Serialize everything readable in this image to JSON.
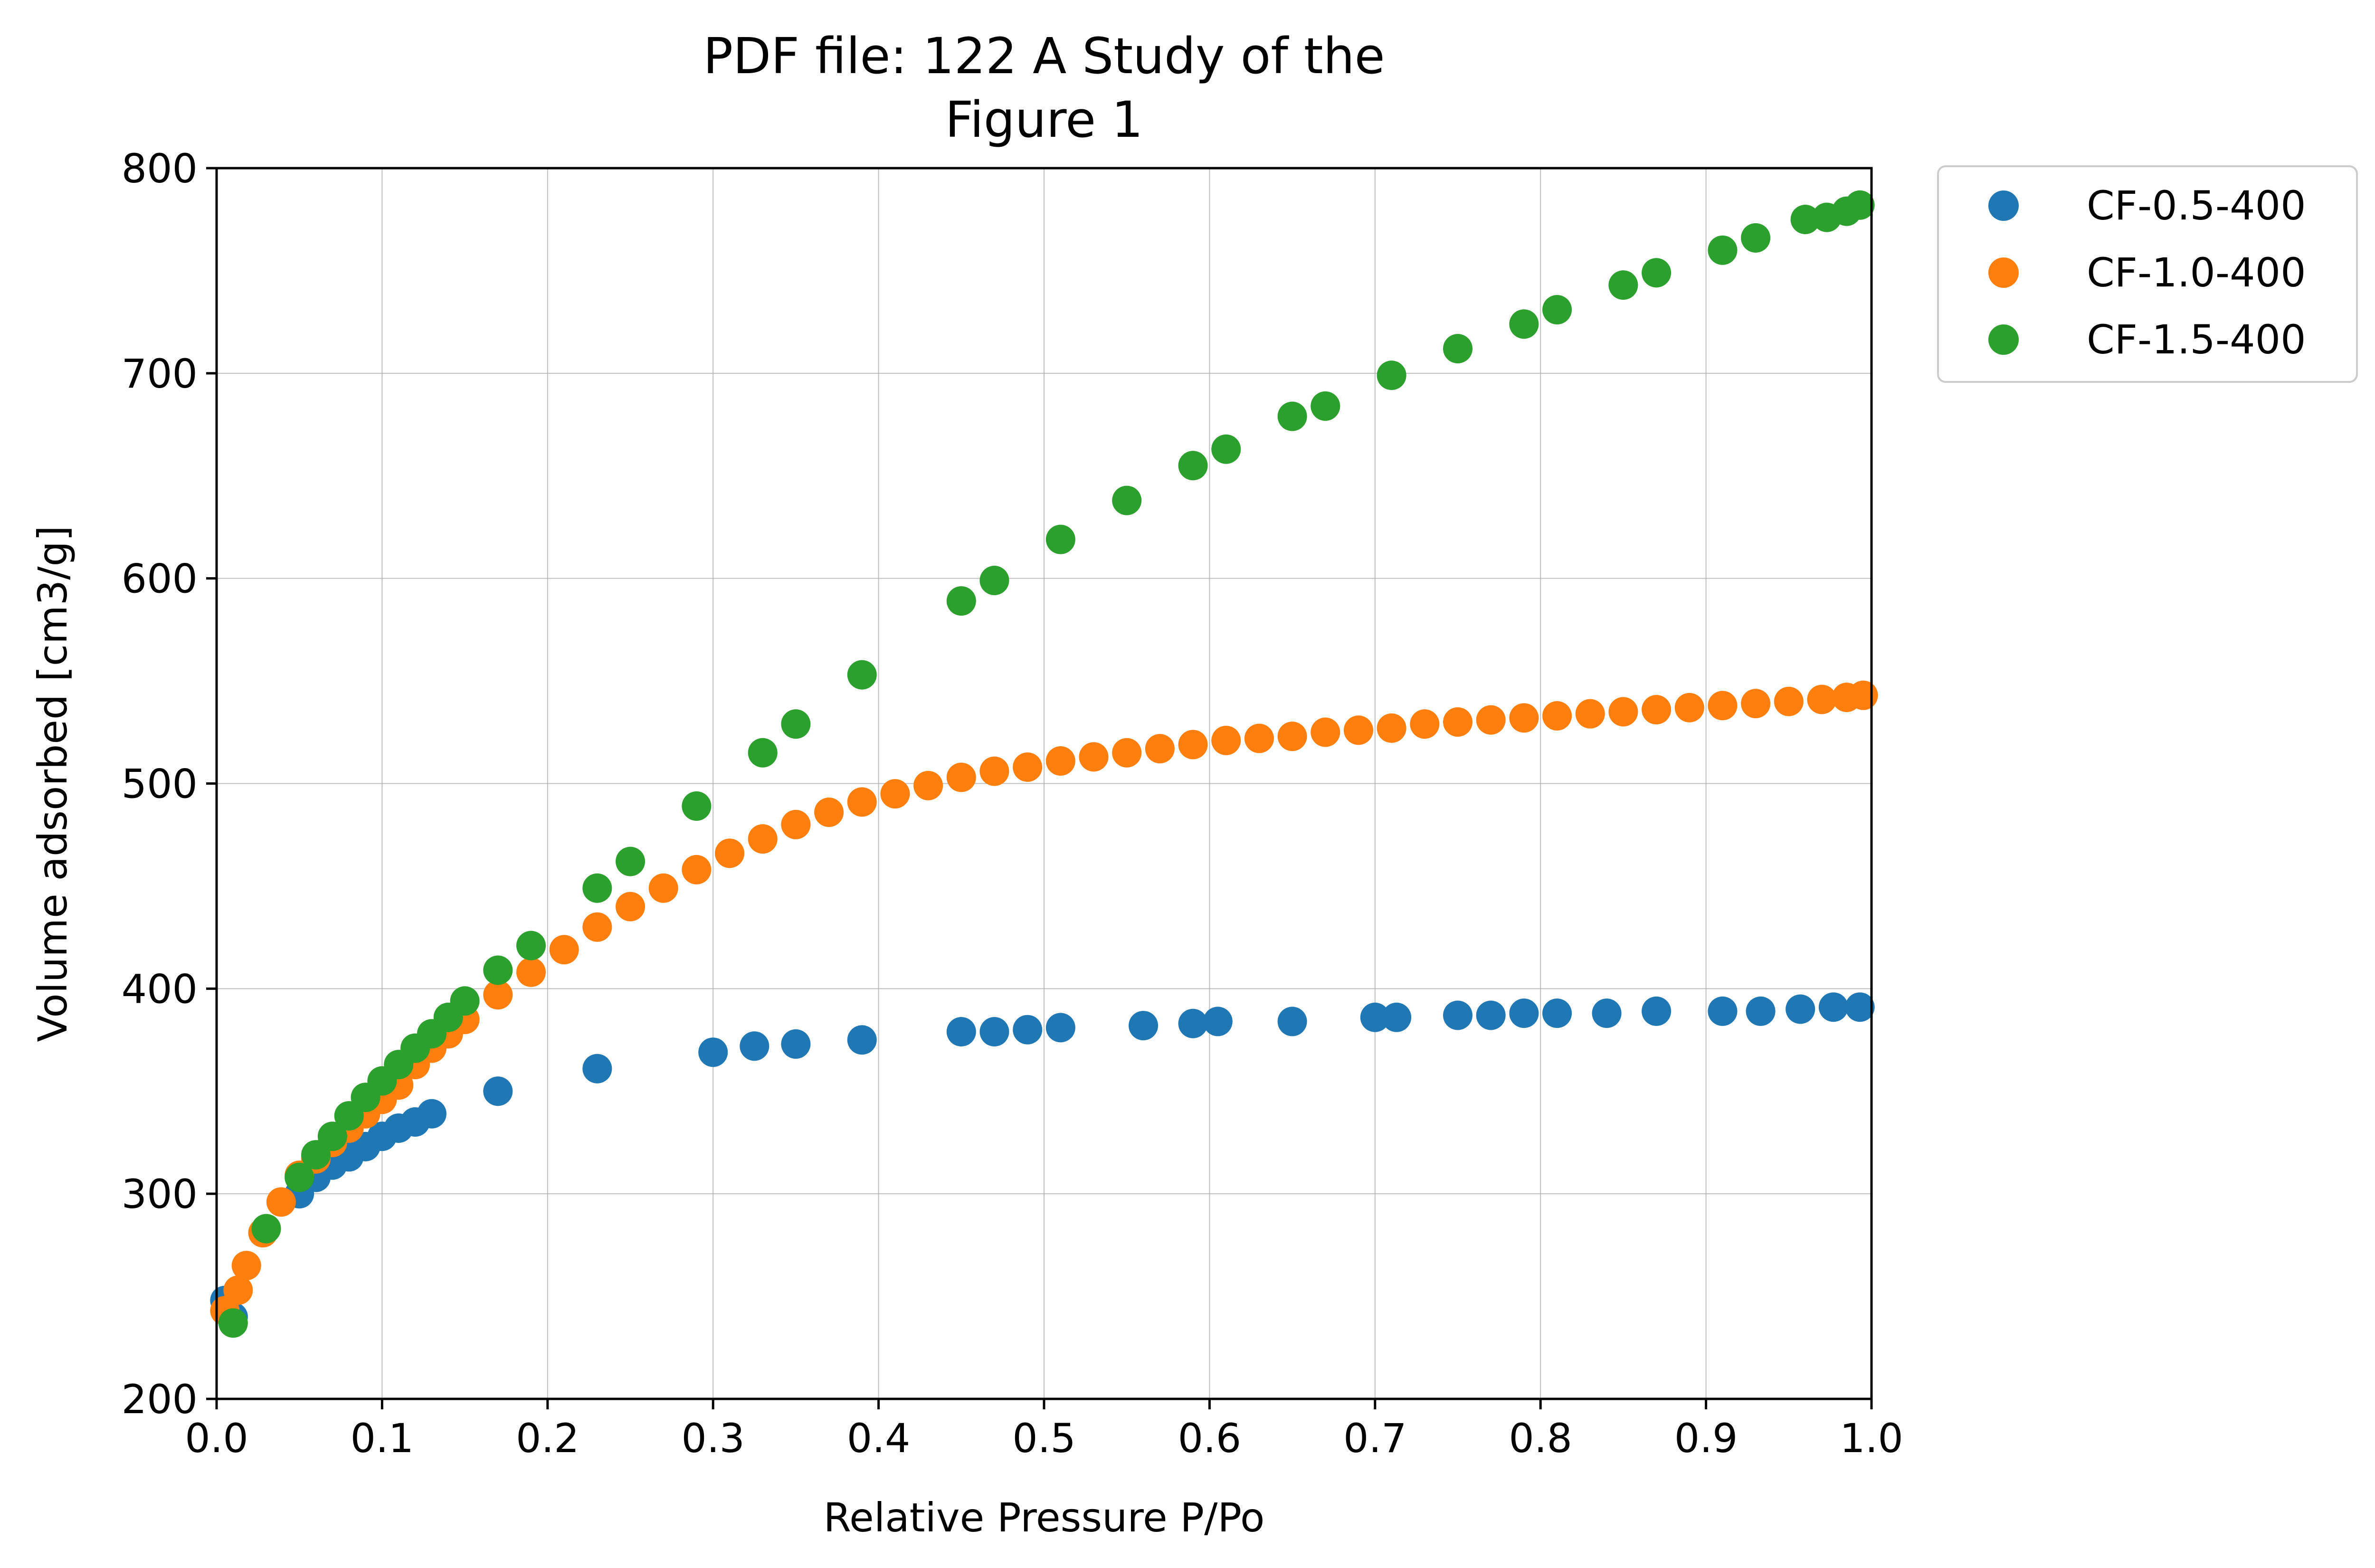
{
  "chart_data": {
    "type": "scatter",
    "title": "PDF file: 122 A Study of the",
    "subtitle": "Figure 1",
    "xlabel": "Relative Pressure P/Po",
    "ylabel": "Volume adsorbed [cm3/g]",
    "xlim": [
      0.0,
      1.0
    ],
    "ylim": [
      200,
      800
    ],
    "xticks": [
      0.0,
      0.1,
      0.2,
      0.3,
      0.4,
      0.5,
      0.6,
      0.7,
      0.8,
      0.9,
      1.0
    ],
    "xtick_labels": [
      "0.0",
      "0.1",
      "0.2",
      "0.3",
      "0.4",
      "0.5",
      "0.6",
      "0.7",
      "0.8",
      "0.9",
      "1.0"
    ],
    "yticks": [
      200,
      300,
      400,
      500,
      600,
      700,
      800
    ],
    "ytick_labels": [
      "200",
      "300",
      "400",
      "500",
      "600",
      "700",
      "800"
    ],
    "grid": true,
    "legend_position": "outside-top-right",
    "series": [
      {
        "name": "CF-0.5-400",
        "color": "#1f77b4",
        "x": [
          0.005,
          0.01,
          0.05,
          0.06,
          0.07,
          0.08,
          0.09,
          0.1,
          0.11,
          0.12,
          0.13,
          0.17,
          0.23,
          0.3,
          0.325,
          0.35,
          0.39,
          0.45,
          0.47,
          0.49,
          0.51,
          0.56,
          0.59,
          0.605,
          0.65,
          0.7,
          0.713,
          0.75,
          0.77,
          0.79,
          0.81,
          0.84,
          0.87,
          0.91,
          0.933,
          0.957,
          0.977,
          0.993
        ],
        "y": [
          248,
          240,
          300,
          308,
          314,
          318,
          323,
          328,
          332,
          335,
          339,
          350,
          361,
          369,
          372,
          373,
          375,
          379,
          379,
          380,
          381,
          382,
          383,
          384,
          384,
          386,
          386,
          387,
          387,
          388,
          388,
          388,
          389,
          389,
          389,
          390,
          391,
          391
        ]
      },
      {
        "name": "CF-1.0-400",
        "color": "#ff7f0e",
        "x": [
          0.005,
          0.013,
          0.018,
          0.028,
          0.039,
          0.05,
          0.06,
          0.07,
          0.08,
          0.09,
          0.1,
          0.11,
          0.12,
          0.13,
          0.14,
          0.15,
          0.17,
          0.19,
          0.21,
          0.23,
          0.25,
          0.27,
          0.29,
          0.31,
          0.33,
          0.35,
          0.37,
          0.39,
          0.41,
          0.43,
          0.45,
          0.47,
          0.49,
          0.51,
          0.53,
          0.55,
          0.57,
          0.59,
          0.61,
          0.63,
          0.65,
          0.67,
          0.69,
          0.71,
          0.73,
          0.75,
          0.77,
          0.79,
          0.81,
          0.83,
          0.85,
          0.87,
          0.89,
          0.91,
          0.93,
          0.95,
          0.97,
          0.985,
          0.995
        ],
        "y": [
          243,
          253,
          265,
          281,
          296,
          309,
          317,
          325,
          332,
          339,
          346,
          353,
          363,
          371,
          378,
          385,
          397,
          408,
          419,
          430,
          440,
          449,
          458,
          466,
          473,
          480,
          486,
          491,
          495,
          499,
          503,
          506,
          508,
          511,
          513,
          515,
          517,
          519,
          521,
          522,
          523,
          525,
          526,
          527,
          529,
          530,
          531,
          532,
          533,
          534,
          535,
          536,
          537,
          538,
          539,
          540,
          541,
          542,
          543
        ]
      },
      {
        "name": "CF-1.5-400",
        "color": "#2ca02c",
        "x": [
          0.01,
          0.03,
          0.05,
          0.06,
          0.07,
          0.08,
          0.09,
          0.1,
          0.11,
          0.12,
          0.13,
          0.14,
          0.15,
          0.17,
          0.19,
          0.23,
          0.25,
          0.29,
          0.33,
          0.35,
          0.39,
          0.45,
          0.47,
          0.51,
          0.55,
          0.59,
          0.61,
          0.65,
          0.67,
          0.71,
          0.75,
          0.79,
          0.81,
          0.85,
          0.87,
          0.91,
          0.93,
          0.96,
          0.973,
          0.985,
          0.993
        ],
        "y": [
          237,
          283,
          308,
          319,
          328,
          338,
          347,
          355,
          363,
          371,
          378,
          386,
          394,
          409,
          421,
          449,
          462,
          489,
          515,
          529,
          553,
          589,
          599,
          619,
          638,
          655,
          663,
          679,
          684,
          699,
          712,
          724,
          731,
          743,
          749,
          760,
          766,
          775,
          776,
          779,
          782
        ]
      }
    ]
  }
}
